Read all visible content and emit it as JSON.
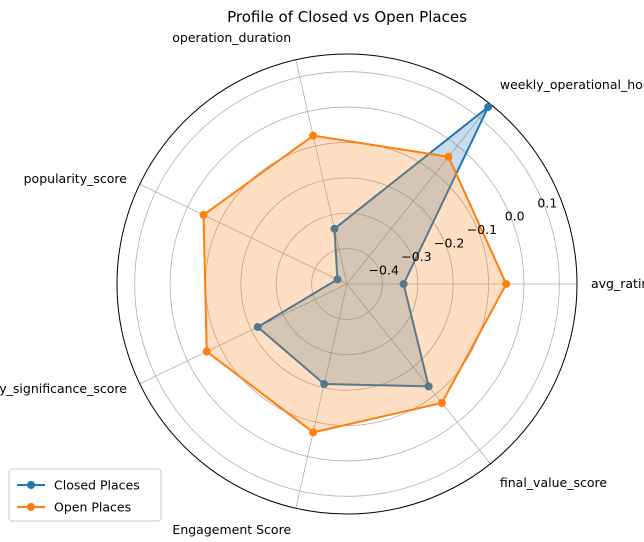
{
  "chart_data": {
    "type": "radar",
    "title": "Profile of Closed vs Open Places",
    "axes": [
      "avg_rating",
      "weekly_operational_hours",
      "operation_duration",
      "popularity_score",
      "community_significance_score",
      "Engagement Score",
      "final_value_score"
    ],
    "rlim": [
      -0.5,
      0.15
    ],
    "rticks": [
      -0.4,
      -0.3,
      -0.2,
      -0.1,
      0.0,
      0.1
    ],
    "rtick_labels": [
      "−0.4",
      "−0.3",
      "−0.2",
      "−0.1",
      "0.0",
      "0.1"
    ],
    "grid": true,
    "legend_position": "lower-left",
    "series": [
      {
        "name": "Closed Places",
        "color": "#1f77b4",
        "values": [
          -0.34,
          0.14,
          -0.34,
          -0.47,
          -0.22,
          -0.21,
          -0.13
        ]
      },
      {
        "name": "Open Places",
        "color": "#ff7f0e",
        "values": [
          -0.05,
          -0.04,
          -0.07,
          -0.05,
          -0.06,
          -0.07,
          -0.07
        ]
      }
    ]
  }
}
